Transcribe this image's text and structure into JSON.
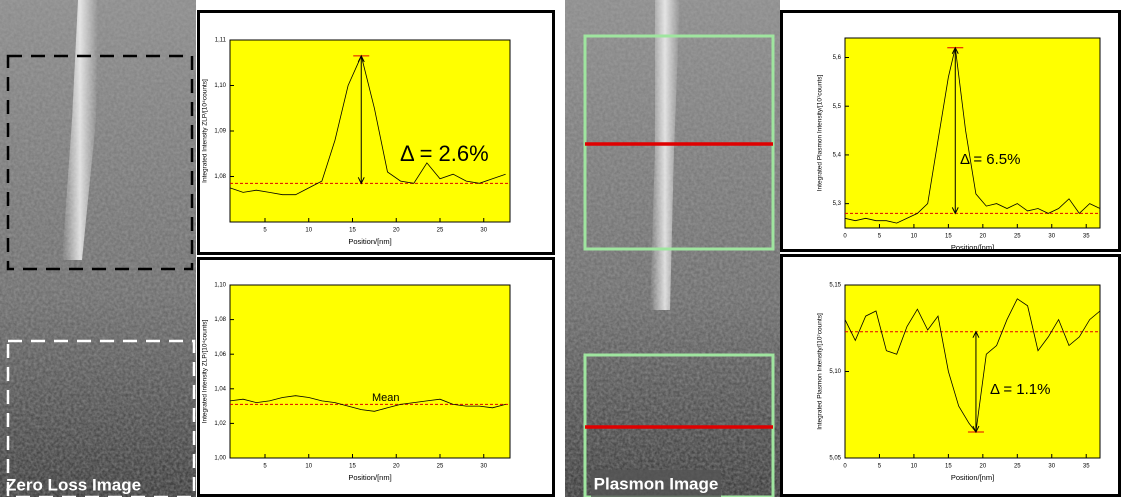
{
  "image_labels": [
    "Zero Loss Image",
    "Plasmon Image"
  ],
  "chart_data": [
    {
      "type": "line",
      "x_label": "Position/[nm]",
      "y_label": "Integrated Intensity ZLP/[10⁴counts]",
      "annotation": "Δ = 2.6%",
      "xlim": [
        1,
        33
      ],
      "xticks": [
        5,
        10,
        15,
        20,
        25,
        30
      ],
      "ylim": [
        1.07,
        1.11
      ],
      "yticks": [
        {
          "value": 1.08,
          "label": "1,08"
        },
        {
          "value": 1.09,
          "label": "1,09"
        },
        {
          "value": 1.1,
          "label": "1,10"
        },
        {
          "value": 1.11,
          "label": "1,11"
        }
      ],
      "plot_background": "#ffff00",
      "series": [
        {
          "color": "#000000",
          "x": [
            1,
            2.5,
            4,
            5.5,
            7,
            8.5,
            10,
            11.5,
            13,
            14.5,
            16,
            17.5,
            19,
            20.5,
            22,
            23.5,
            25,
            26.5,
            28,
            29.5,
            31,
            32.5
          ],
          "values": [
            1.0775,
            1.0765,
            1.077,
            1.0765,
            1.076,
            1.076,
            1.0775,
            1.079,
            1.088,
            1.1,
            1.1065,
            1.095,
            1.081,
            1.079,
            1.0785,
            1.083,
            1.0795,
            1.0805,
            1.079,
            1.0785,
            1.0795,
            1.0805
          ]
        }
      ],
      "reference_line": {
        "value": 1.0785,
        "color": "#e00000"
      }
    },
    {
      "type": "line",
      "x_label": "Position/[nm]",
      "y_label": "Integrated Intensity ZLP/[10⁴counts]",
      "annotation": "Mean",
      "xlim": [
        1,
        33
      ],
      "xticks": [
        5,
        10,
        15,
        20,
        25,
        30
      ],
      "ylim": [
        1.0,
        1.1
      ],
      "yticks": [
        {
          "value": 1.0,
          "label": "1,00"
        },
        {
          "value": 1.02,
          "label": "1,02"
        },
        {
          "value": 1.04,
          "label": "1,04"
        },
        {
          "value": 1.06,
          "label": "1,06"
        },
        {
          "value": 1.08,
          "label": "1,08"
        },
        {
          "value": 1.1,
          "label": "1,10"
        }
      ],
      "plot_background": "#ffff00",
      "series": [
        {
          "color": "#000000",
          "x": [
            1,
            2.5,
            4,
            5.5,
            7,
            8.5,
            10,
            11.5,
            13,
            14.5,
            16,
            17.5,
            19,
            20.5,
            22,
            23.5,
            25,
            26.5,
            28,
            29.5,
            31,
            32.5
          ],
          "values": [
            1.033,
            1.034,
            1.032,
            1.033,
            1.035,
            1.036,
            1.035,
            1.033,
            1.032,
            1.03,
            1.028,
            1.027,
            1.029,
            1.031,
            1.032,
            1.033,
            1.034,
            1.031,
            1.03,
            1.03,
            1.029,
            1.031
          ]
        }
      ],
      "reference_line": {
        "value": 1.031,
        "color": "#e00000"
      }
    },
    {
      "type": "line",
      "x_label": "Position/[nm]",
      "y_label": "Integrated Plasmon Intensity/[10⁷counts]",
      "annotation": "Δ = 6.5%",
      "xlim": [
        0,
        37
      ],
      "xticks": [
        0,
        5,
        10,
        15,
        20,
        25,
        30,
        35
      ],
      "ylim": [
        5.25,
        5.64
      ],
      "yticks": [
        {
          "value": 5.3,
          "label": "5,3"
        },
        {
          "value": 5.4,
          "label": "5,4"
        },
        {
          "value": 5.5,
          "label": "5,5"
        },
        {
          "value": 5.6,
          "label": "5,6"
        }
      ],
      "plot_background": "#ffff00",
      "series": [
        {
          "color": "#000000",
          "x": [
            0,
            1.5,
            3,
            4.5,
            6,
            7.5,
            9,
            10.5,
            12,
            13.5,
            15,
            16,
            17.5,
            19,
            20.5,
            22,
            23.5,
            25,
            26.5,
            28,
            29.5,
            31,
            32.5,
            34,
            35.5,
            37
          ],
          "values": [
            5.27,
            5.265,
            5.27,
            5.265,
            5.265,
            5.26,
            5.27,
            5.28,
            5.3,
            5.43,
            5.56,
            5.62,
            5.45,
            5.32,
            5.295,
            5.3,
            5.29,
            5.3,
            5.285,
            5.29,
            5.28,
            5.29,
            5.31,
            5.28,
            5.3,
            5.29
          ]
        }
      ],
      "reference_line": {
        "value": 5.28,
        "color": "#e00000"
      }
    },
    {
      "type": "line",
      "x_label": "Position/[nm]",
      "y_label": "Integrated Plasmon Intensity/[10⁷counts]",
      "annotation": "Δ = 1.1%",
      "xlim": [
        0,
        37
      ],
      "xticks": [
        0,
        5,
        10,
        15,
        20,
        25,
        30,
        35
      ],
      "ylim": [
        5.05,
        5.15
      ],
      "yticks": [
        {
          "value": 5.05,
          "label": "5,05"
        },
        {
          "value": 5.1,
          "label": "5,10"
        },
        {
          "value": 5.15,
          "label": "5,15"
        }
      ],
      "plot_background": "#ffff00",
      "series": [
        {
          "color": "#000000",
          "x": [
            0,
            1.5,
            3,
            4.5,
            6,
            7.5,
            9,
            10.5,
            12,
            13.5,
            15,
            16.5,
            18,
            19,
            20.5,
            22,
            23.5,
            25,
            26.5,
            28,
            29.5,
            31,
            32.5,
            34,
            35.5,
            37
          ],
          "values": [
            5.13,
            5.118,
            5.132,
            5.135,
            5.112,
            5.11,
            5.126,
            5.136,
            5.124,
            5.132,
            5.1,
            5.08,
            5.07,
            5.065,
            5.11,
            5.115,
            5.13,
            5.142,
            5.138,
            5.112,
            5.12,
            5.13,
            5.115,
            5.12,
            5.13,
            5.135
          ]
        }
      ],
      "reference_line": {
        "value": 5.123,
        "color": "#e00000"
      }
    }
  ]
}
